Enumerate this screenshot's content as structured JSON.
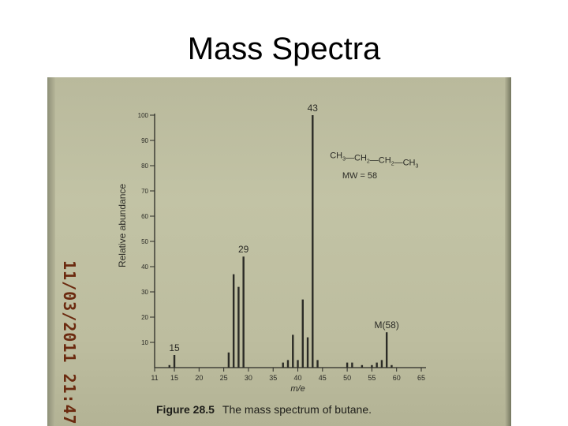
{
  "slide": {
    "title": "Mass Spectra"
  },
  "photo": {
    "date_stamp": "11/03/2011 21:47"
  },
  "chart_data": {
    "type": "bar",
    "xlabel": "m/e",
    "ylabel": "Relative abundance",
    "xlim": [
      11,
      65
    ],
    "ylim": [
      0,
      100
    ],
    "x_ticks": [
      11,
      15,
      20,
      25,
      30,
      35,
      40,
      45,
      50,
      55,
      60,
      65
    ],
    "y_ticks": [
      10,
      20,
      30,
      40,
      50,
      60,
      70,
      80,
      90,
      100
    ],
    "series": [
      {
        "x": [
          14,
          15,
          26,
          27,
          28,
          29,
          37,
          38,
          39,
          40,
          41,
          42,
          43,
          44,
          50,
          51,
          53,
          55,
          56,
          57,
          58,
          59
        ],
        "values": [
          1,
          5,
          6,
          37,
          32,
          44,
          2,
          3,
          13,
          3,
          27,
          12,
          100,
          3,
          2,
          2,
          1,
          1,
          2,
          3,
          14,
          1
        ]
      }
    ],
    "peak_labels": [
      {
        "x": 15,
        "y": 5,
        "text": "15"
      },
      {
        "x": 29,
        "y": 44,
        "text": "29"
      },
      {
        "x": 43,
        "y": 100,
        "text": "43"
      },
      {
        "x": 58,
        "y": 14,
        "text": "M(58)"
      }
    ],
    "formula": {
      "parts": [
        {
          "text": "CH",
          "sub": "3"
        },
        {
          "text": "—CH",
          "sub": "2"
        },
        {
          "text": "—CH",
          "sub": "2"
        },
        {
          "text": "—CH",
          "sub": "3"
        }
      ],
      "mw": "MW = 58"
    },
    "caption": {
      "label": "Figure 28.5",
      "text": "The mass spectrum of butane."
    },
    "colors": {
      "ink": "#2b2b26",
      "paper": "#c1c2a4"
    }
  }
}
